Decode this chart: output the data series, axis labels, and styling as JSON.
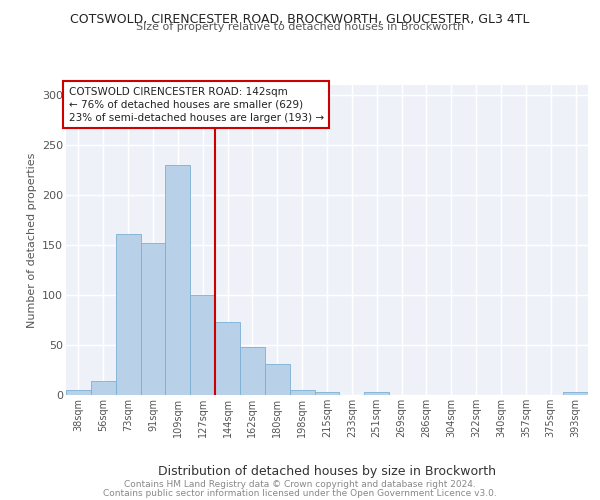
{
  "title1": "COTSWOLD, CIRENCESTER ROAD, BROCKWORTH, GLOUCESTER, GL3 4TL",
  "title2": "Size of property relative to detached houses in Brockworth",
  "xlabel": "Distribution of detached houses by size in Brockworth",
  "ylabel": "Number of detached properties",
  "categories": [
    "38sqm",
    "56sqm",
    "73sqm",
    "91sqm",
    "109sqm",
    "127sqm",
    "144sqm",
    "162sqm",
    "180sqm",
    "198sqm",
    "215sqm",
    "233sqm",
    "251sqm",
    "269sqm",
    "286sqm",
    "304sqm",
    "322sqm",
    "340sqm",
    "357sqm",
    "375sqm",
    "393sqm"
  ],
  "values": [
    5,
    14,
    161,
    152,
    230,
    100,
    73,
    48,
    31,
    5,
    3,
    0,
    3,
    0,
    0,
    0,
    0,
    0,
    0,
    0,
    3
  ],
  "bar_color": "#b8d0e8",
  "bar_edge_color": "#7aafd4",
  "vline_color": "#cc0000",
  "annotation_text": "COTSWOLD CIRENCESTER ROAD: 142sqm\n← 76% of detached houses are smaller (629)\n23% of semi-detached houses are larger (193) →",
  "annotation_box_color": "#cc0000",
  "background_color": "#eef2f8",
  "grid_color": "#ffffff",
  "footer1": "Contains HM Land Registry data © Crown copyright and database right 2024.",
  "footer2": "Contains public sector information licensed under the Open Government Licence v3.0.",
  "ylim": [
    0,
    310
  ],
  "yticks": [
    0,
    50,
    100,
    150,
    200,
    250,
    300
  ]
}
